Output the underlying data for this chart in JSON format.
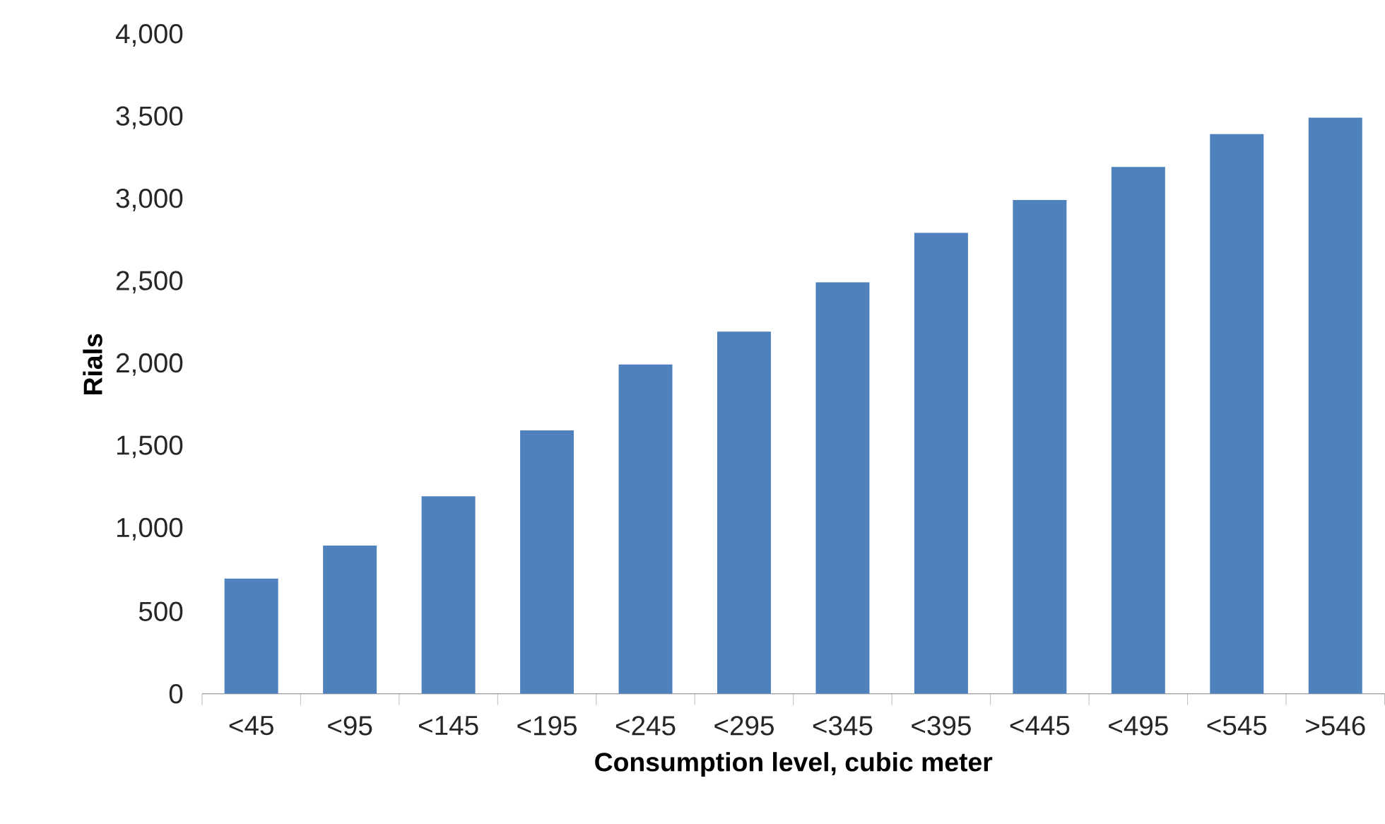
{
  "chart_data": {
    "type": "bar",
    "xlabel": "Consumption level, cubic meter",
    "ylabel": "Rials",
    "categories": [
      "<45",
      "<95",
      "<145",
      "<195",
      "<245",
      "<295",
      "<345",
      "<395",
      "<445",
      "<495",
      "<545",
      ">546"
    ],
    "values": [
      700,
      900,
      1200,
      1600,
      2000,
      2200,
      2500,
      2800,
      3000,
      3200,
      3400,
      3500
    ],
    "color": "#4f81bd",
    "ylim": [
      0,
      4000
    ],
    "yticks": [
      {
        "value": 0,
        "label": "0"
      },
      {
        "value": 500,
        "label": "500"
      },
      {
        "value": 1000,
        "label": "1,000"
      },
      {
        "value": 1500,
        "label": "1,500"
      },
      {
        "value": 2000,
        "label": "2,000"
      },
      {
        "value": 2500,
        "label": "2,500"
      },
      {
        "value": 3000,
        "label": "3,000"
      },
      {
        "value": 3500,
        "label": "3,500"
      },
      {
        "value": 4000,
        "label": "4,000"
      }
    ],
    "grid": false
  }
}
